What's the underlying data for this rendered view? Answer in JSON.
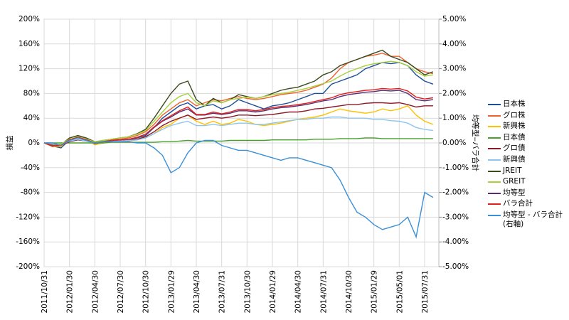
{
  "chart_data": {
    "type": "line",
    "ylabel": "損益",
    "y2label": "均等型‒バラ合計",
    "categories": [
      "2011/10/31",
      null,
      null,
      "2012/01/30",
      null,
      null,
      "2012/04/30",
      null,
      null,
      "2012/07/30",
      null,
      null,
      "2012/10/30",
      null,
      null,
      "2013/01/29",
      null,
      null,
      "2013/04/30",
      null,
      null,
      "2013/07/31",
      null,
      null,
      "2013/10/30",
      null,
      null,
      "2014/01/29",
      null,
      null,
      "2014/04/30",
      null,
      null,
      "2014/07/31",
      null,
      null,
      "2014/10/30",
      null,
      null,
      "2015/01/29",
      null,
      null,
      "2015/05/01",
      null,
      null,
      "2015/07/31",
      null
    ],
    "ylim": [
      -200,
      200
    ],
    "yticks": [
      {
        "value": -200,
        "label": "-200%"
      },
      {
        "value": -160,
        "label": "-160%"
      },
      {
        "value": -120,
        "label": "-120%"
      },
      {
        "value": -80,
        "label": "-80%"
      },
      {
        "value": -40,
        "label": "-40%"
      },
      {
        "value": 0,
        "label": "0%"
      },
      {
        "value": 40,
        "label": "40%"
      },
      {
        "value": 80,
        "label": "80%"
      },
      {
        "value": 120,
        "label": "120%"
      },
      {
        "value": 160,
        "label": "160%"
      },
      {
        "value": 200,
        "label": "200%"
      }
    ],
    "y2lim": [
      -5,
      5
    ],
    "y2ticks": [
      {
        "value": -5,
        "label": "-5.00%"
      },
      {
        "value": -4,
        "label": "-4.00%"
      },
      {
        "value": -3,
        "label": "-3.00%"
      },
      {
        "value": -2,
        "label": "-2.00%"
      },
      {
        "value": -1,
        "label": "-1.00%"
      },
      {
        "value": 0,
        "label": "0.00%"
      },
      {
        "value": 1,
        "label": "1.00%"
      },
      {
        "value": 2,
        "label": "2.00%"
      },
      {
        "value": 3,
        "label": "3.00%"
      },
      {
        "value": 4,
        "label": "4.00%"
      },
      {
        "value": 5,
        "label": "5.00%"
      }
    ],
    "grid": true,
    "legend": "right",
    "series": [
      {
        "name": "日本株",
        "color": "#1f4e99",
        "values": [
          0,
          -5,
          -8,
          5,
          10,
          5,
          -2,
          0,
          2,
          3,
          5,
          8,
          12,
          25,
          40,
          50,
          60,
          65,
          55,
          60,
          62,
          55,
          60,
          70,
          65,
          60,
          55,
          60,
          62,
          65,
          70,
          75,
          80,
          80,
          95,
          100,
          105,
          110,
          120,
          125,
          130,
          128,
          130,
          125,
          110,
          100,
          95
        ]
      },
      {
        "name": "グロ株",
        "color": "#f0622d",
        "values": [
          0,
          -6,
          -5,
          8,
          12,
          6,
          0,
          3,
          5,
          6,
          8,
          12,
          18,
          30,
          45,
          55,
          65,
          70,
          60,
          65,
          70,
          68,
          72,
          75,
          72,
          70,
          72,
          75,
          78,
          80,
          82,
          85,
          90,
          95,
          105,
          120,
          130,
          135,
          140,
          142,
          145,
          140,
          140,
          130,
          120,
          115,
          112
        ]
      },
      {
        "name": "新興株",
        "color": "#ffc000",
        "values": [
          0,
          -5,
          -6,
          5,
          10,
          5,
          -3,
          0,
          2,
          2,
          3,
          5,
          8,
          15,
          25,
          30,
          40,
          45,
          35,
          30,
          35,
          30,
          32,
          38,
          35,
          30,
          28,
          30,
          32,
          35,
          38,
          40,
          42,
          45,
          50,
          55,
          52,
          50,
          48,
          50,
          55,
          52,
          55,
          60,
          45,
          35,
          30
        ]
      },
      {
        "name": "日本債",
        "color": "#4aa02c",
        "values": [
          0,
          0,
          0,
          0,
          0,
          0,
          0,
          0,
          1,
          1,
          1,
          1,
          1,
          1,
          2,
          2,
          3,
          4,
          3,
          3,
          3,
          3,
          4,
          4,
          4,
          4,
          4,
          5,
          5,
          5,
          5,
          5,
          6,
          6,
          6,
          7,
          7,
          7,
          8,
          8,
          7,
          7,
          7,
          7,
          7,
          7,
          7
        ]
      },
      {
        "name": "グロ債",
        "color": "#8b1a2b",
        "values": [
          0,
          -3,
          -4,
          2,
          5,
          3,
          0,
          2,
          3,
          3,
          4,
          6,
          10,
          18,
          28,
          35,
          40,
          45,
          38,
          40,
          42,
          40,
          42,
          45,
          45,
          44,
          45,
          46,
          48,
          50,
          50,
          52,
          55,
          56,
          58,
          60,
          62,
          62,
          64,
          65,
          65,
          64,
          65,
          62,
          58,
          60,
          60
        ]
      },
      {
        "name": "新興債",
        "color": "#8ec5ef",
        "values": [
          0,
          -2,
          -3,
          3,
          6,
          3,
          0,
          2,
          3,
          3,
          4,
          5,
          8,
          15,
          22,
          28,
          32,
          35,
          28,
          28,
          30,
          28,
          30,
          32,
          32,
          30,
          30,
          32,
          34,
          36,
          38,
          38,
          40,
          40,
          42,
          42,
          40,
          40,
          40,
          38,
          38,
          36,
          35,
          32,
          25,
          22,
          20
        ]
      },
      {
        "name": "JREIT",
        "color": "#3b4a1f",
        "values": [
          0,
          -5,
          -3,
          8,
          12,
          8,
          2,
          4,
          6,
          8,
          10,
          15,
          22,
          40,
          60,
          80,
          95,
          100,
          70,
          60,
          72,
          65,
          70,
          78,
          75,
          72,
          75,
          80,
          85,
          88,
          90,
          95,
          100,
          110,
          115,
          125,
          130,
          135,
          140,
          145,
          150,
          140,
          135,
          130,
          120,
          110,
          115
        ]
      },
      {
        "name": "GREIT",
        "color": "#a6d13c",
        "values": [
          0,
          -4,
          -2,
          6,
          10,
          6,
          2,
          4,
          6,
          8,
          10,
          14,
          20,
          35,
          50,
          65,
          75,
          80,
          65,
          60,
          68,
          65,
          70,
          72,
          74,
          72,
          75,
          78,
          80,
          82,
          85,
          88,
          92,
          96,
          100,
          108,
          115,
          120,
          125,
          128,
          130,
          132,
          130,
          125,
          115,
          108,
          110
        ]
      },
      {
        "name": "均等型",
        "color": "#5b2c6f",
        "values": [
          0,
          -4,
          -4,
          5,
          9,
          5,
          0,
          2,
          4,
          5,
          6,
          9,
          14,
          25,
          35,
          42,
          50,
          55,
          45,
          45,
          48,
          46,
          48,
          52,
          52,
          50,
          52,
          55,
          57,
          58,
          60,
          62,
          65,
          68,
          70,
          75,
          78,
          80,
          82,
          83,
          85,
          84,
          85,
          80,
          70,
          68,
          70
        ]
      },
      {
        "name": "バラ合計",
        "color": "#e02020",
        "values": [
          0,
          -4,
          -4,
          5,
          9,
          5,
          0,
          2,
          4,
          5,
          6,
          9,
          14,
          26,
          36,
          44,
          52,
          58,
          46,
          46,
          50,
          47,
          50,
          54,
          54,
          52,
          54,
          57,
          59,
          60,
          62,
          64,
          67,
          70,
          73,
          78,
          81,
          83,
          85,
          86,
          88,
          87,
          88,
          84,
          74,
          71,
          73
        ]
      },
      {
        "name": "均等型 - バラ合計\n(右軸)",
        "color": "#3a8fd6",
        "axis": "y2",
        "values": [
          0,
          0,
          -0.1,
          0.1,
          0.2,
          0.1,
          0,
          0.05,
          0.05,
          0.05,
          0.05,
          0,
          0,
          -0.2,
          -0.5,
          -1.2,
          -1.0,
          -0.4,
          0,
          0.1,
          0.1,
          -0.1,
          -0.2,
          -0.3,
          -0.3,
          -0.4,
          -0.5,
          -0.6,
          -0.7,
          -0.6,
          -0.6,
          -0.7,
          -0.8,
          -0.9,
          -1.0,
          -1.5,
          -2.2,
          -2.8,
          -3.0,
          -3.3,
          -3.5,
          -3.4,
          -3.3,
          -3.0,
          -3.8,
          -2.0,
          -2.2
        ]
      }
    ]
  }
}
